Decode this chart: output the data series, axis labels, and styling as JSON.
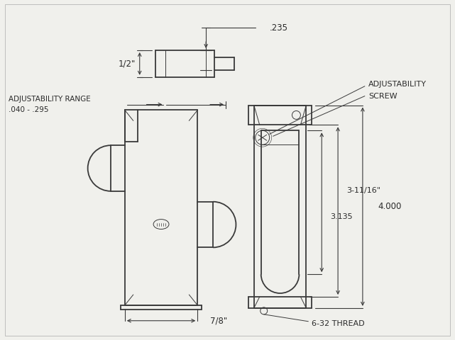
{
  "bg_color": "#f0f0ec",
  "line_color": "#3a3a3a",
  "text_color": "#2a2a2a",
  "figsize": [
    6.41,
    4.8
  ],
  "dpi": 100,
  "annotations": {
    "half_inch": "1/2\"",
    "dot235": ".235",
    "adj_range_line1": "ADJUSTABILITY RANGE",
    "adj_range_line2": ".040 - .295",
    "seven_eighth": "7/8\"",
    "adj_screw_line1": "ADJUSTABILITY",
    "adj_screw_line2": "SCREW",
    "dim_4000": "4.000",
    "dim_3_11_16": "3-11/16\"",
    "dim_3135": "3.135",
    "thread": "6-32 THREAD"
  }
}
